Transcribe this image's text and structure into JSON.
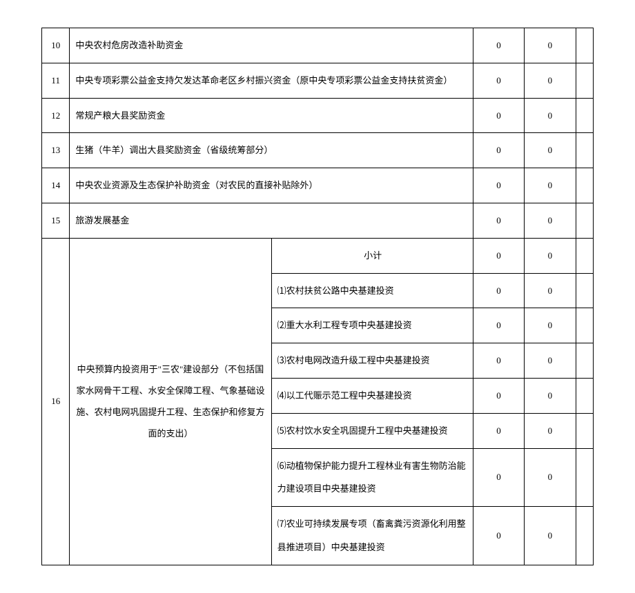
{
  "rows_simple": [
    {
      "idx": "10",
      "desc": "中央农村危房改造补助资金",
      "v1": "0",
      "v2": "0"
    },
    {
      "idx": "11",
      "desc": "中央专项彩票公益金支持欠发达革命老区乡村振兴资金（原中央专项彩票公益金支持扶贫资金）",
      "v1": "0",
      "v2": "0"
    },
    {
      "idx": "12",
      "desc": "常规产粮大县奖励资金",
      "v1": "0",
      "v2": "0"
    },
    {
      "idx": "13",
      "desc": "生猪（牛羊）调出大县奖励资金（省级统筹部分）",
      "v1": "0",
      "v2": "0"
    },
    {
      "idx": "14",
      "desc": "中央农业资源及生态保护补助资金（对农民的直接补贴除外）",
      "v1": "0",
      "v2": "0"
    },
    {
      "idx": "15",
      "desc": "旅游发展基金",
      "v1": "0",
      "v2": "0"
    }
  ],
  "row16": {
    "idx": "16",
    "label": "中央预算内投资用于\"三农\"建设部分（不包括国家水网骨干工程、水安全保障工程、气象基础设施、农村电网巩固提升工程、生态保护和修复方面的支出）",
    "subs": [
      {
        "name": "小计",
        "align": "center",
        "v1": "0",
        "v2": "0"
      },
      {
        "name": "⑴农村扶贫公路中央基建投资",
        "align": "left",
        "v1": "0",
        "v2": "0"
      },
      {
        "name": "⑵重大水利工程专项中央基建投资",
        "align": "left",
        "v1": "0",
        "v2": "0"
      },
      {
        "name": "⑶农村电网改造升级工程中央基建投资",
        "align": "left",
        "v1": "0",
        "v2": "0"
      },
      {
        "name": "⑷以工代赈示范工程中央基建投资",
        "align": "left",
        "v1": "0",
        "v2": "0"
      },
      {
        "name": "⑸农村饮水安全巩固提升工程中央基建投资",
        "align": "left",
        "v1": "0",
        "v2": "0"
      },
      {
        "name": "⑹动植物保护能力提升工程林业有害生物防治能力建设项目中央基建投资",
        "align": "left",
        "v1": "0",
        "v2": "0"
      },
      {
        "name": "⑺农业可持续发展专项（畜禽粪污资源化利用整县推进项目）中央基建投资",
        "align": "left",
        "v1": "0",
        "v2": "0"
      }
    ]
  }
}
